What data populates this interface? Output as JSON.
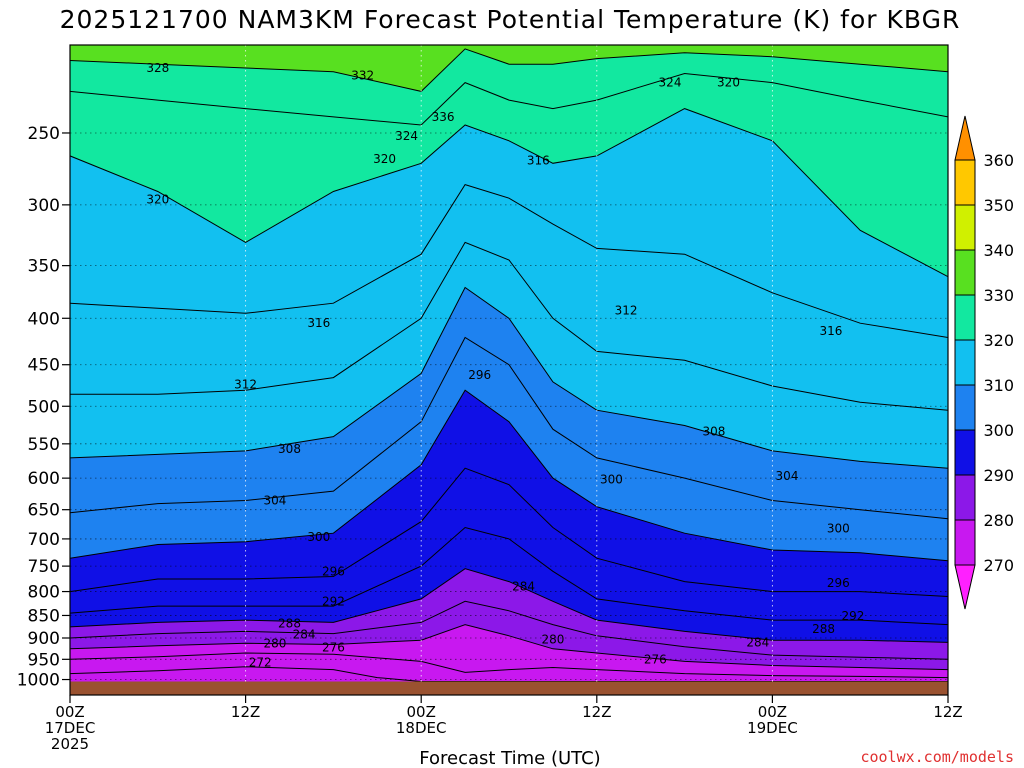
{
  "chart_data": {
    "type": "heatmap",
    "title": "2025121700 NAM3KM Forecast Potential Temperature (K) for KBGR",
    "xlabel": "Forecast Time (UTC)",
    "ylabel": "",
    "credit": "coolwx.com/models",
    "credit_color": "#e03030",
    "x_ticks": [
      {
        "hour": 0,
        "lines": [
          "00Z",
          "17DEC",
          "2025"
        ]
      },
      {
        "hour": 12,
        "lines": [
          "12Z"
        ]
      },
      {
        "hour": 24,
        "lines": [
          "00Z",
          "18DEC"
        ]
      },
      {
        "hour": 36,
        "lines": [
          "12Z"
        ]
      },
      {
        "hour": 48,
        "lines": [
          "00Z",
          "19DEC"
        ]
      },
      {
        "hour": 60,
        "lines": [
          "12Z"
        ]
      }
    ],
    "xlim": [
      0,
      60
    ],
    "y_ticks": [
      250,
      300,
      350,
      400,
      450,
      500,
      550,
      600,
      650,
      700,
      750,
      800,
      850,
      900,
      950,
      1000
    ],
    "y_tick_labels": [
      "250",
      "300",
      "350",
      "400",
      "450",
      "500",
      "550",
      "600",
      "650",
      "700",
      "750",
      "800",
      "850",
      "900",
      "950",
      "1000"
    ],
    "ylim_hpa": [
      1040,
      200
    ],
    "surface_pressure_hpa": 1005,
    "surface_color": "#9a5230",
    "colorbar": {
      "ticks": [
        270,
        280,
        290,
        300,
        310,
        320,
        330,
        340,
        350,
        360
      ],
      "tick_labels": [
        "270",
        "280",
        "290",
        "300",
        "310",
        "320",
        "330",
        "340",
        "350",
        "360"
      ],
      "bins": [
        {
          "from": 260,
          "to": 270,
          "color": "#ff20ff"
        },
        {
          "from": 270,
          "to": 280,
          "color": "#c818f0"
        },
        {
          "from": 280,
          "to": 290,
          "color": "#8c18e8"
        },
        {
          "from": 290,
          "to": 300,
          "color": "#1010e6"
        },
        {
          "from": 300,
          "to": 310,
          "color": "#1e82f0"
        },
        {
          "from": 310,
          "to": 320,
          "color": "#12c0f0"
        },
        {
          "from": 320,
          "to": 330,
          "color": "#12e8a0"
        },
        {
          "from": 330,
          "to": 340,
          "color": "#58e020"
        },
        {
          "from": 340,
          "to": 350,
          "color": "#d0f000"
        },
        {
          "from": 350,
          "to": 360,
          "color": "#ffc800"
        },
        {
          "from": 360,
          "to": 370,
          "color": "#ff9000"
        }
      ]
    },
    "isentropes": [
      {
        "theta": 272,
        "hour": [
          0,
          6,
          12,
          18,
          21,
          24,
          27,
          30,
          33,
          36,
          42,
          48,
          54,
          60
        ],
        "p_hpa": [
          985,
          978,
          968,
          975,
          995,
          1005,
          1005,
          1005,
          1005,
          1005,
          1005,
          1005,
          1005,
          1005
        ]
      },
      {
        "theta": 276,
        "hour": [
          0,
          6,
          12,
          18,
          24,
          27,
          30,
          33,
          36,
          42,
          48,
          54,
          60
        ],
        "p_hpa": [
          950,
          944,
          935,
          938,
          955,
          982,
          975,
          970,
          975,
          985,
          990,
          992,
          995
        ]
      },
      {
        "theta": 280,
        "hour": [
          0,
          6,
          12,
          18,
          24,
          27,
          30,
          33,
          36,
          42,
          48,
          54,
          60
        ],
        "p_hpa": [
          925,
          918,
          912,
          915,
          905,
          870,
          895,
          925,
          935,
          955,
          965,
          970,
          975
        ]
      },
      {
        "theta": 284,
        "hour": [
          0,
          6,
          12,
          18,
          24,
          27,
          30,
          33,
          36,
          42,
          48,
          54,
          60
        ],
        "p_hpa": [
          900,
          890,
          885,
          890,
          865,
          820,
          840,
          870,
          895,
          920,
          940,
          945,
          950
        ]
      },
      {
        "theta": 288,
        "hour": [
          0,
          6,
          12,
          18,
          24,
          27,
          30,
          33,
          36,
          42,
          48,
          54,
          60
        ],
        "p_hpa": [
          875,
          865,
          860,
          865,
          815,
          755,
          780,
          820,
          860,
          885,
          905,
          905,
          910
        ]
      },
      {
        "theta": 292,
        "hour": [
          0,
          6,
          12,
          18,
          24,
          27,
          30,
          33,
          36,
          42,
          48,
          54,
          60
        ],
        "p_hpa": [
          845,
          830,
          830,
          830,
          750,
          680,
          700,
          760,
          815,
          840,
          860,
          860,
          870
        ]
      },
      {
        "theta": 296,
        "hour": [
          0,
          6,
          12,
          18,
          24,
          27,
          30,
          33,
          36,
          42,
          48,
          54,
          60
        ],
        "p_hpa": [
          800,
          775,
          775,
          770,
          670,
          585,
          610,
          680,
          735,
          780,
          800,
          800,
          810
        ]
      },
      {
        "theta": 300,
        "hour": [
          0,
          6,
          12,
          18,
          24,
          27,
          30,
          33,
          36,
          42,
          48,
          54,
          60
        ],
        "p_hpa": [
          735,
          710,
          705,
          690,
          580,
          480,
          520,
          600,
          645,
          690,
          720,
          725,
          740
        ]
      },
      {
        "theta": 304,
        "hour": [
          0,
          6,
          12,
          18,
          24,
          27,
          30,
          33,
          36,
          42,
          48,
          54,
          60
        ],
        "p_hpa": [
          655,
          640,
          635,
          620,
          520,
          420,
          450,
          530,
          570,
          600,
          635,
          650,
          665
        ]
      },
      {
        "theta": 308,
        "hour": [
          0,
          6,
          12,
          18,
          24,
          27,
          30,
          33,
          36,
          42,
          48,
          54,
          60
        ],
        "p_hpa": [
          570,
          565,
          560,
          540,
          460,
          370,
          400,
          470,
          505,
          525,
          560,
          575,
          585
        ]
      },
      {
        "theta": 312,
        "hour": [
          0,
          6,
          12,
          18,
          24,
          27,
          30,
          33,
          36,
          42,
          48,
          54,
          60
        ],
        "p_hpa": [
          485,
          485,
          480,
          465,
          400,
          330,
          345,
          400,
          435,
          445,
          475,
          495,
          505
        ]
      },
      {
        "theta": 316,
        "hour": [
          0,
          6,
          12,
          18,
          24,
          27,
          30,
          33,
          36,
          42,
          48,
          54,
          60
        ],
        "p_hpa": [
          385,
          390,
          395,
          385,
          340,
          285,
          295,
          315,
          335,
          340,
          375,
          405,
          420
        ]
      },
      {
        "theta": 320,
        "hour": [
          0,
          6,
          12,
          18,
          24,
          27,
          30,
          33,
          36,
          42,
          48,
          54,
          60
        ],
        "p_hpa": [
          265,
          290,
          330,
          290,
          270,
          245,
          255,
          270,
          265,
          235,
          255,
          320,
          360
        ]
      },
      {
        "theta": 324,
        "hour": [
          0,
          6,
          12,
          18,
          24,
          27,
          30,
          33,
          36,
          42,
          48,
          54,
          60
        ],
        "p_hpa": [
          225,
          230,
          235,
          240,
          245,
          220,
          230,
          235,
          230,
          215,
          220,
          230,
          240
        ]
      },
      {
        "theta": 328,
        "hour": [
          0,
          6,
          12,
          18,
          24,
          27,
          30,
          33,
          36,
          42,
          48,
          54,
          60
        ],
        "p_hpa": [
          208,
          210,
          212,
          214,
          225,
          202,
          210,
          210,
          207,
          204,
          206,
          210,
          214
        ]
      }
    ],
    "contour_labels": [
      {
        "text": "328",
        "hour": 6,
        "p_hpa": 212
      },
      {
        "text": "332",
        "hour": 20,
        "p_hpa": 216
      },
      {
        "text": "336",
        "hour": 25.5,
        "p_hpa": 240
      },
      {
        "text": "324",
        "hour": 23,
        "p_hpa": 252
      },
      {
        "text": "320",
        "hour": 21.5,
        "p_hpa": 267
      },
      {
        "text": "316",
        "hour": 32,
        "p_hpa": 268
      },
      {
        "text": "324",
        "hour": 41,
        "p_hpa": 220
      },
      {
        "text": "320",
        "hour": 45,
        "p_hpa": 220
      },
      {
        "text": "320",
        "hour": 6,
        "p_hpa": 296
      },
      {
        "text": "316",
        "hour": 17,
        "p_hpa": 405
      },
      {
        "text": "312",
        "hour": 38,
        "p_hpa": 392
      },
      {
        "text": "316",
        "hour": 52,
        "p_hpa": 413
      },
      {
        "text": "312",
        "hour": 12,
        "p_hpa": 473
      },
      {
        "text": "296",
        "hour": 28,
        "p_hpa": 462
      },
      {
        "text": "308",
        "hour": 15,
        "p_hpa": 557
      },
      {
        "text": "308",
        "hour": 44,
        "p_hpa": 533
      },
      {
        "text": "304",
        "hour": 14,
        "p_hpa": 635
      },
      {
        "text": "300",
        "hour": 37,
        "p_hpa": 602
      },
      {
        "text": "304",
        "hour": 49,
        "p_hpa": 597
      },
      {
        "text": "300",
        "hour": 17,
        "p_hpa": 697
      },
      {
        "text": "300",
        "hour": 52.5,
        "p_hpa": 682
      },
      {
        "text": "296",
        "hour": 18,
        "p_hpa": 760
      },
      {
        "text": "292",
        "hour": 18,
        "p_hpa": 820
      },
      {
        "text": "284",
        "hour": 31,
        "p_hpa": 790
      },
      {
        "text": "296",
        "hour": 52.5,
        "p_hpa": 783
      },
      {
        "text": "292",
        "hour": 53.5,
        "p_hpa": 851
      },
      {
        "text": "288",
        "hour": 15,
        "p_hpa": 868
      },
      {
        "text": "284",
        "hour": 16,
        "p_hpa": 892
      },
      {
        "text": "288",
        "hour": 51.5,
        "p_hpa": 880
      },
      {
        "text": "280",
        "hour": 14,
        "p_hpa": 913
      },
      {
        "text": "276",
        "hour": 18,
        "p_hpa": 922
      },
      {
        "text": "280",
        "hour": 33,
        "p_hpa": 903
      },
      {
        "text": "284",
        "hour": 47,
        "p_hpa": 910
      },
      {
        "text": "272",
        "hour": 13,
        "p_hpa": 958
      },
      {
        "text": "276",
        "hour": 40,
        "p_hpa": 950
      }
    ]
  }
}
